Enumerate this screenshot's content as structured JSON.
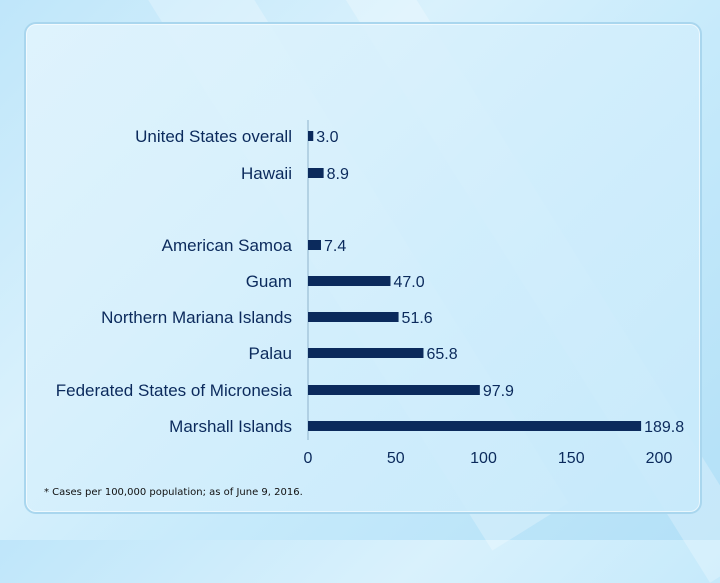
{
  "chart_data": {
    "type": "bar",
    "orientation": "horizontal",
    "title": "",
    "xlabel": "",
    "ylabel": "",
    "categories": [
      "United States overall",
      "Hawaii",
      "American Samoa",
      "Guam",
      "Northern Mariana Islands",
      "Palau",
      "Federated States of Micronesia",
      "Marshall Islands"
    ],
    "values": [
      3.0,
      8.9,
      7.4,
      47.0,
      51.6,
      65.8,
      97.9,
      189.8
    ],
    "value_labels": [
      "3.0",
      "8.9",
      "7.4",
      "47.0",
      "51.6",
      "65.8",
      "97.9",
      "189.8"
    ],
    "group_gap_after_index": 1,
    "xlim": [
      0,
      200
    ],
    "xticks": [
      0,
      50,
      100,
      150,
      200
    ],
    "grid": false,
    "legend": "none",
    "bar_color": "#0b2a5c"
  },
  "footnote": "* Cases per 100,000 population; as of June 9, 2016."
}
